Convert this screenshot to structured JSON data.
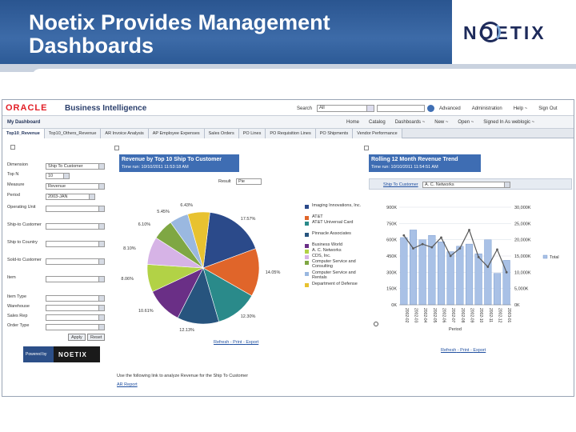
{
  "slide": {
    "title_line1": "Noetix Provides Management",
    "title_line2": "Dashboards",
    "logo": "NOETIX"
  },
  "app": {
    "brand": "ORACLE",
    "product": "Business Intelligence",
    "search_label": "Search",
    "search_scope": "All",
    "top_links": [
      "Advanced",
      "Administration",
      "Help ~",
      "Sign Out"
    ],
    "dashboard_name": "My Dashboard",
    "second_links": [
      "Home",
      "Catalog",
      "Dashboards ~",
      "New ~",
      "Open ~",
      "Signed In As weblogic ~"
    ]
  },
  "tabs": [
    {
      "label": "Top10_Revenue",
      "active": true
    },
    {
      "label": "Top10_Others_Revenue",
      "active": false
    },
    {
      "label": "AR Invoice Analysis",
      "active": false
    },
    {
      "label": "AP Employee Expenses",
      "active": false
    },
    {
      "label": "Sales Orders",
      "active": false
    },
    {
      "label": "PO Lines",
      "active": false
    },
    {
      "label": "PO Requisition Lines",
      "active": false
    },
    {
      "label": "PO Shipments",
      "active": false
    },
    {
      "label": "Vendor Performance",
      "active": false
    }
  ],
  "filters": [
    {
      "label": "Dimension",
      "value": "Ship To Customer"
    },
    {
      "label": "Top N",
      "value": "10"
    },
    {
      "label": "Measure",
      "value": "Revenue"
    },
    {
      "label": "Period",
      "value": "2003-JAN"
    },
    {
      "label": "Operating Unit",
      "value": ""
    },
    {
      "label": "Ship-to Customer",
      "value": ""
    },
    {
      "label": "Ship to Country",
      "value": ""
    },
    {
      "label": "Sold-to Customer",
      "value": ""
    },
    {
      "label": "Item",
      "value": ""
    },
    {
      "label": "Item Type",
      "value": ""
    },
    {
      "label": "Warehouse",
      "value": ""
    },
    {
      "label": "Sales Rep",
      "value": ""
    },
    {
      "label": "Order Type",
      "value": ""
    }
  ],
  "filter_buttons": {
    "apply": "Apply",
    "reset": "Reset"
  },
  "powered_by": {
    "label": "Powered by",
    "logo": "NOETIX"
  },
  "pie_panel": {
    "title": "Revenue by Top 10 Ship To Customer",
    "subtitle": "Time run: 10/10/2011 11:53:18 AM",
    "result_label": "Result",
    "result_value": "Pie",
    "links": [
      "Refresh",
      "Print",
      "Export"
    ]
  },
  "trend_panel": {
    "title": "Rolling 12 Month Revenue Trend",
    "subtitle": "Time run: 10/10/2011 11:54:51 AM",
    "filter_label": "Ship To Customer",
    "filter_value": "A. C. Networks",
    "links": [
      "Refresh",
      "Print",
      "Export"
    ]
  },
  "bottom": {
    "text": "Use the following link to analyze Revenue for the Ship To Customer",
    "link": "AR Report"
  },
  "chart_data": [
    {
      "type": "pie",
      "title": "Revenue by Top 10 Ship To Customer",
      "categories": [
        "Imaging Innovations, Inc.",
        "AT&T",
        "AT&T Universal Card",
        "Pinnacle Associates",
        "Business World",
        "A. C. Networks",
        "CDS, Inc.",
        "Computer Service and Consulting",
        "Computer Service and Rentals",
        "Department of Defense"
      ],
      "values": [
        17.57,
        14.05,
        12.3,
        12.13,
        10.61,
        8.06,
        8.1,
        6.1,
        5.45,
        6.43
      ],
      "labels": [
        "17.57%",
        "14.05%",
        "12.30%",
        "12.13%",
        "10.61%",
        "8.06%",
        "8.10%",
        "6.10%",
        "5.45%",
        "6.43%"
      ],
      "colors": [
        "#2b4a8a",
        "#e0652a",
        "#2a8a8a",
        "#27547e",
        "#6a2f86",
        "#b2d246",
        "#d6b3e6",
        "#7fa743",
        "#9ab8e0",
        "#e8c230"
      ]
    },
    {
      "type": "bar",
      "title": "Rolling 12 Month Revenue Trend",
      "categories": [
        "2002-02",
        "2002-03",
        "2002-04",
        "2002-05",
        "2002-06",
        "2002-07",
        "2002-08",
        "2002-09",
        "2002-10",
        "2002-11",
        "2002-12",
        "2003-01"
      ],
      "xlabel": "Period",
      "y_ticks_left": [
        "0K",
        "150K",
        "300K",
        "450K",
        "600K",
        "750K",
        "900K"
      ],
      "y_ticks_right": [
        "0K",
        "5,000K",
        "10,000K",
        "15,000K",
        "20,000K",
        "25,000K",
        "30,000K"
      ],
      "ylim": [
        0,
        900
      ],
      "series": [
        {
          "name": "Total",
          "type": "bar",
          "values": [
            620,
            690,
            600,
            640,
            580,
            490,
            540,
            560,
            470,
            600,
            290,
            410
          ]
        },
        {
          "name": "",
          "type": "line",
          "values": [
            640,
            520,
            560,
            530,
            620,
            450,
            520,
            690,
            440,
            350,
            510,
            300
          ]
        }
      ],
      "legend": "right",
      "colors": {
        "bar": "#a9c1e6",
        "line": "#595959"
      }
    }
  ]
}
